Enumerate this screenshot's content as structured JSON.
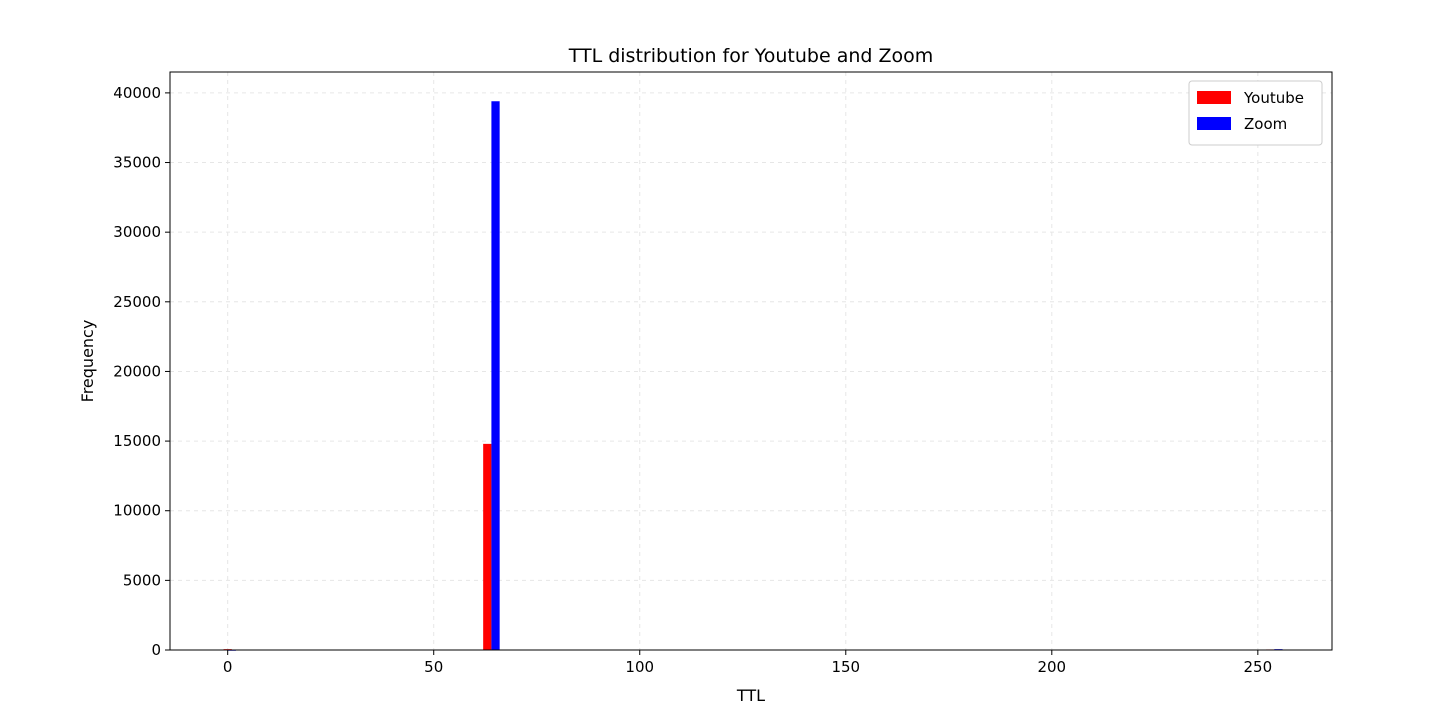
{
  "chart_data": {
    "type": "bar",
    "title": "TTL distribution for Youtube and Zoom",
    "xlabel": "TTL",
    "ylabel": "Frequency",
    "xlim": [
      -14,
      268
    ],
    "ylim": [
      0,
      41500
    ],
    "xticks": [
      0,
      50,
      100,
      150,
      200,
      250
    ],
    "yticks": [
      0,
      5000,
      10000,
      15000,
      20000,
      25000,
      30000,
      35000,
      40000
    ],
    "grid": true,
    "legend_position": "top-right",
    "series": [
      {
        "name": "Youtube",
        "color": "#ff0000",
        "points": [
          {
            "x": -1,
            "width": 2,
            "y": 60
          },
          {
            "x": 62,
            "width": 2,
            "y": 14800
          },
          {
            "x": 252,
            "width": 2,
            "y": 40
          }
        ]
      },
      {
        "name": "Zoom",
        "color": "#0000ff",
        "points": [
          {
            "x": 0,
            "width": 2,
            "y": 20
          },
          {
            "x": 64,
            "width": 2,
            "y": 39400
          },
          {
            "x": 254,
            "width": 2,
            "y": 60
          }
        ]
      }
    ]
  }
}
